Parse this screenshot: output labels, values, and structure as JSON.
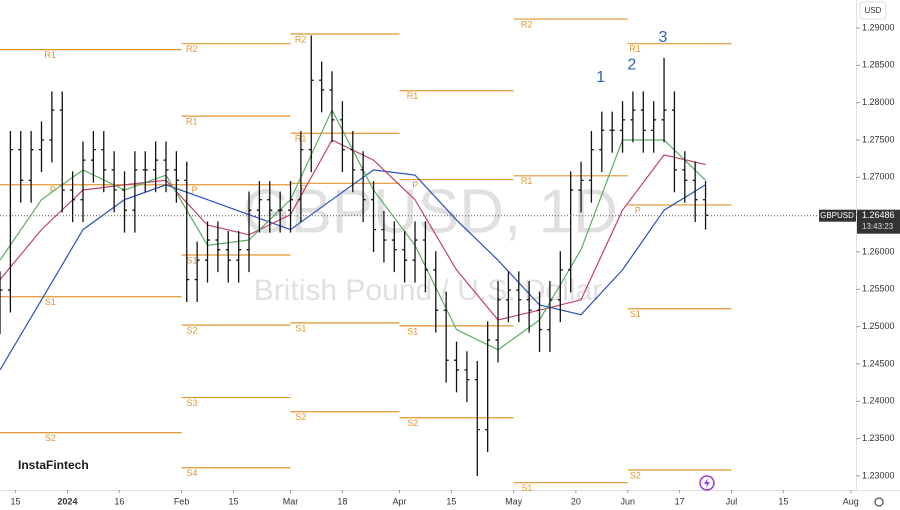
{
  "chart_data": {
    "type": "ohlc",
    "title": "GBPUSD, 1D",
    "subtitle": "British Pound / U.S. Dollar",
    "brand": "InstaFintech",
    "currency": "USD",
    "color": "#111111",
    "xlim": [
      0,
      165
    ],
    "xticks": [
      {
        "value": 3,
        "label": "15"
      },
      {
        "value": 13,
        "label": "2024"
      },
      {
        "value": 23,
        "label": "16"
      },
      {
        "value": 35,
        "label": "Feb"
      },
      {
        "value": 45,
        "label": "15"
      },
      {
        "value": 56,
        "label": "Mar"
      },
      {
        "value": 66,
        "label": "18"
      },
      {
        "value": 77,
        "label": "Apr"
      },
      {
        "value": 87,
        "label": "15"
      },
      {
        "value": 99,
        "label": "May"
      },
      {
        "value": 111,
        "label": "20"
      },
      {
        "value": 121,
        "label": "Jun"
      },
      {
        "value": 131,
        "label": "17"
      },
      {
        "value": 141,
        "label": "Jul"
      },
      {
        "value": 151,
        "label": "15"
      },
      {
        "value": 164,
        "label": "Aug"
      }
    ],
    "ylim": [
      1.22812,
      1.29375
    ],
    "yticks": [
      {
        "value": 1.23,
        "label": "1.23000"
      },
      {
        "value": 1.235,
        "label": "1.23500"
      },
      {
        "value": 1.24,
        "label": "1.24000"
      },
      {
        "value": 1.245,
        "label": "1.24500"
      },
      {
        "value": 1.25,
        "label": "1.25000"
      },
      {
        "value": 1.255,
        "label": "1.25500"
      },
      {
        "value": 1.26,
        "label": "1.26000"
      },
      {
        "value": 1.265,
        "label": "1.26500"
      },
      {
        "value": 1.27,
        "label": "1.27000"
      },
      {
        "value": 1.275,
        "label": "1.27500"
      },
      {
        "value": 1.28,
        "label": "1.28000"
      },
      {
        "value": 1.285,
        "label": "1.28500"
      },
      {
        "value": 1.29,
        "label": "1.29000"
      }
    ],
    "x": [
      0,
      2,
      4,
      6,
      8,
      10,
      12,
      14,
      16,
      18,
      20,
      22,
      24,
      26,
      28,
      30,
      32,
      34,
      36,
      38,
      40,
      42,
      44,
      46,
      48,
      50,
      52,
      54,
      56,
      58,
      60,
      62,
      64,
      66,
      68,
      70,
      72,
      74,
      76,
      78,
      80,
      82,
      84,
      86,
      88,
      90,
      92,
      94,
      96,
      98,
      100,
      102,
      104,
      106,
      108,
      110,
      112,
      114,
      116,
      118,
      120,
      122,
      124,
      126,
      128,
      130,
      132,
      134,
      136
    ],
    "open": [
      1.252,
      1.2549,
      1.2737,
      1.2696,
      1.2737,
      1.275,
      1.279,
      1.2683,
      1.267,
      1.2723,
      1.2737,
      1.271,
      1.2683,
      1.2656,
      1.271,
      1.271,
      1.2723,
      1.271,
      1.2696,
      1.2563,
      1.2589,
      1.2616,
      1.2603,
      1.2589,
      1.2603,
      1.2656,
      1.267,
      1.2656,
      1.2656,
      1.267,
      1.2737,
      1.283,
      1.2817,
      1.2777,
      1.2737,
      1.271,
      1.267,
      1.263,
      1.2616,
      1.2603,
      1.2589,
      1.2616,
      1.2576,
      1.2522,
      1.2455,
      1.2442,
      1.2429,
      1.2362,
      1.2482,
      1.2536,
      1.2549,
      1.2536,
      1.2522,
      1.2496,
      1.2536,
      1.2576,
      1.2683,
      1.2696,
      1.2737,
      1.2763,
      1.2763,
      1.2777,
      1.279,
      1.2763,
      1.2777,
      1.279,
      1.271,
      1.2696,
      1.267
    ],
    "high": [
      1.2574,
      1.2762,
      1.2762,
      1.2762,
      1.2775,
      1.2815,
      1.2815,
      1.2708,
      1.2748,
      1.2762,
      1.2762,
      1.2735,
      1.2708,
      1.2735,
      1.2735,
      1.2748,
      1.2748,
      1.2735,
      1.2721,
      1.2614,
      1.2641,
      1.2641,
      1.2628,
      1.2628,
      1.2681,
      1.2695,
      1.2695,
      1.2681,
      1.2695,
      1.2762,
      1.289,
      1.2855,
      1.2842,
      1.2802,
      1.2762,
      1.2735,
      1.2695,
      1.2655,
      1.2641,
      1.2628,
      1.2641,
      1.2641,
      1.2601,
      1.2547,
      1.248,
      1.2467,
      1.2454,
      1.2507,
      1.2561,
      1.2574,
      1.2574,
      1.2561,
      1.2547,
      1.2561,
      1.2601,
      1.2708,
      1.2721,
      1.2762,
      1.2788,
      1.2788,
      1.2802,
      1.2815,
      1.2815,
      1.2802,
      1.286,
      1.2815,
      1.2735,
      1.2721,
      1.2695
    ],
    "low": [
      1.249,
      1.2519,
      1.2666,
      1.2666,
      1.2707,
      1.272,
      1.2653,
      1.264,
      1.264,
      1.2693,
      1.268,
      1.2653,
      1.2626,
      1.2626,
      1.268,
      1.268,
      1.268,
      1.2666,
      1.2533,
      1.2533,
      1.2559,
      1.2573,
      1.2559,
      1.2559,
      1.2573,
      1.2626,
      1.2626,
      1.2626,
      1.2626,
      1.264,
      1.2707,
      1.2787,
      1.2747,
      1.2707,
      1.268,
      1.264,
      1.26,
      1.2586,
      1.2573,
      1.2559,
      1.2559,
      1.2546,
      1.2492,
      1.2425,
      1.2412,
      1.2399,
      1.23,
      1.2332,
      1.2452,
      1.2506,
      1.2506,
      1.2492,
      1.2466,
      1.2466,
      1.2506,
      1.2546,
      1.2653,
      1.2666,
      1.2707,
      1.2733,
      1.2733,
      1.2747,
      1.2733,
      1.2733,
      1.2747,
      1.268,
      1.2666,
      1.264,
      1.263
    ],
    "close": [
      1.2549,
      1.2737,
      1.2696,
      1.2737,
      1.275,
      1.279,
      1.2683,
      1.267,
      1.2723,
      1.2737,
      1.271,
      1.2683,
      1.2656,
      1.271,
      1.271,
      1.2723,
      1.271,
      1.2696,
      1.2563,
      1.2589,
      1.2616,
      1.2603,
      1.2589,
      1.2603,
      1.2656,
      1.267,
      1.2656,
      1.2656,
      1.267,
      1.2737,
      1.283,
      1.2817,
      1.2777,
      1.2737,
      1.271,
      1.267,
      1.263,
      1.2616,
      1.2603,
      1.2589,
      1.2616,
      1.2576,
      1.2522,
      1.2455,
      1.2442,
      1.2429,
      1.2362,
      1.2482,
      1.2536,
      1.2549,
      1.2536,
      1.2522,
      1.2496,
      1.2536,
      1.2576,
      1.2683,
      1.2696,
      1.2737,
      1.2763,
      1.2763,
      1.2777,
      1.279,
      1.2763,
      1.2777,
      1.279,
      1.271,
      1.2696,
      1.267,
      1.2649
    ],
    "ma": [
      {
        "color": "#2a52be",
        "x": [
          0,
          8,
          16,
          24,
          32,
          40,
          48,
          56,
          64,
          72,
          80,
          88,
          96,
          104,
          112,
          120,
          128,
          136
        ],
        "values": [
          1.2442,
          1.2536,
          1.263,
          1.267,
          1.269,
          1.267,
          1.265,
          1.263,
          1.267,
          1.271,
          1.2703,
          1.2643,
          1.2589,
          1.2529,
          1.2516,
          1.2576,
          1.2656,
          1.269
        ]
      },
      {
        "color": "#c2406a",
        "x": [
          0,
          8,
          16,
          24,
          32,
          40,
          48,
          56,
          64,
          72,
          80,
          88,
          96,
          104,
          112,
          120,
          128,
          136
        ],
        "values": [
          1.2563,
          1.263,
          1.2683,
          1.269,
          1.2696,
          1.2636,
          1.2623,
          1.265,
          1.275,
          1.2723,
          1.267,
          1.2576,
          1.2509,
          1.2522,
          1.2536,
          1.2656,
          1.273,
          1.2717
        ]
      },
      {
        "color": "#5ab061",
        "x": [
          0,
          8,
          16,
          24,
          32,
          40,
          48,
          56,
          64,
          72,
          80,
          88,
          96,
          104,
          112,
          120,
          128,
          136
        ],
        "values": [
          1.2589,
          1.267,
          1.271,
          1.2683,
          1.2703,
          1.2609,
          1.2616,
          1.267,
          1.279,
          1.2683,
          1.2609,
          1.2496,
          1.2469,
          1.2509,
          1.2603,
          1.275,
          1.275,
          1.2696
        ]
      }
    ],
    "pivot_color": "#e3962f",
    "pivots": [
      {
        "label": "R1",
        "value": 1.2871,
        "from": 0,
        "to": 35
      },
      {
        "label": "P",
        "value": 1.269,
        "from": 0,
        "to": 35
      },
      {
        "label": "S1",
        "value": 1.254,
        "from": 0,
        "to": 35
      },
      {
        "label": "S2",
        "value": 1.2358,
        "from": 0,
        "to": 35
      },
      {
        "label": "R2",
        "value": 1.2879,
        "from": 35,
        "to": 56
      },
      {
        "label": "R1",
        "value": 1.2782,
        "from": 35,
        "to": 56
      },
      {
        "label": "P",
        "value": 1.269,
        "from": 35,
        "to": 56
      },
      {
        "label": "S1",
        "value": 1.2596,
        "from": 35,
        "to": 56
      },
      {
        "label": "S2",
        "value": 1.2502,
        "from": 35,
        "to": 56
      },
      {
        "label": "S3",
        "value": 1.2405,
        "from": 35,
        "to": 56
      },
      {
        "label": "S4",
        "value": 1.2311,
        "from": 35,
        "to": 56
      },
      {
        "label": "R2",
        "value": 1.2892,
        "from": 56,
        "to": 77
      },
      {
        "label": "R1",
        "value": 1.2759,
        "from": 56,
        "to": 77
      },
      {
        "label": "P",
        "value": 1.2692,
        "from": 56,
        "to": 77
      },
      {
        "label": "S1",
        "value": 1.2505,
        "from": 56,
        "to": 77
      },
      {
        "label": "S2",
        "value": 1.2386,
        "from": 56,
        "to": 77
      },
      {
        "label": "R1",
        "value": 1.2816,
        "from": 77,
        "to": 99
      },
      {
        "label": "P",
        "value": 1.2697,
        "from": 77,
        "to": 99
      },
      {
        "label": "S1",
        "value": 1.2501,
        "from": 77,
        "to": 99
      },
      {
        "label": "S2",
        "value": 1.2378,
        "from": 77,
        "to": 99
      },
      {
        "label": "R2",
        "value": 1.2912,
        "from": 99,
        "to": 121
      },
      {
        "label": "R1",
        "value": 1.2702,
        "from": 99,
        "to": 121
      },
      {
        "label": "S1",
        "value": 1.2291,
        "from": 99,
        "to": 121
      },
      {
        "label": "R1",
        "value": 1.2879,
        "from": 121,
        "to": 141
      },
      {
        "label": "P",
        "value": 1.2663,
        "from": 121,
        "to": 141
      },
      {
        "label": "S1",
        "value": 1.2524,
        "from": 121,
        "to": 141
      },
      {
        "label": "S2",
        "value": 1.2308,
        "from": 121,
        "to": 141
      }
    ],
    "annotations": [
      {
        "text": "1",
        "x": 115.8,
        "y": 1.2833
      },
      {
        "text": "2",
        "x": 121.8,
        "y": 1.285
      },
      {
        "text": "3",
        "x": 127.8,
        "y": 1.2887
      }
    ],
    "symbol": "GBPUSD",
    "last_price": 1.26486,
    "countdown": "13:43:23"
  }
}
